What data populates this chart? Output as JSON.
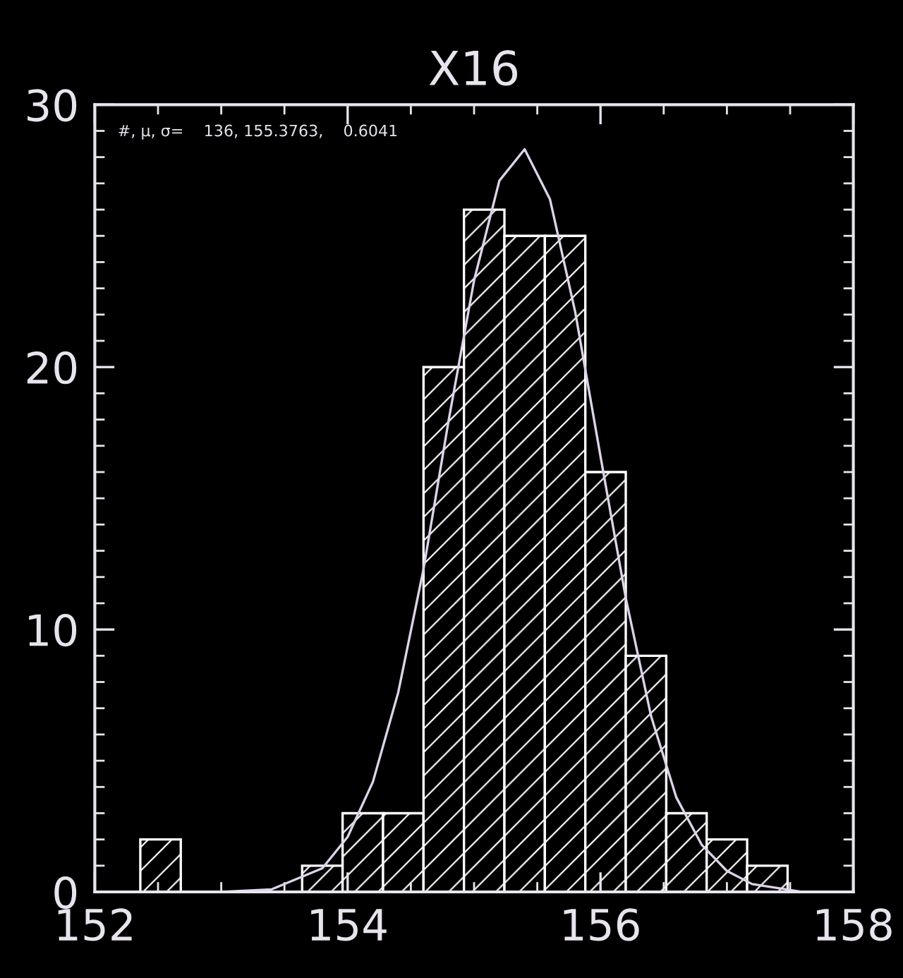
{
  "chart_data": {
    "type": "histogram",
    "title": "X16",
    "bins": [
      152.36,
      152.68,
      153.0,
      153.32,
      153.64,
      153.96,
      154.28,
      154.6,
      154.92,
      155.24,
      155.56,
      155.88,
      156.2,
      156.52,
      156.84,
      157.16,
      157.48
    ],
    "values": [
      2,
      0,
      0,
      0,
      1,
      3,
      3,
      20,
      26,
      25,
      25,
      16,
      9,
      3,
      2,
      1
    ],
    "color": "#ffffff",
    "series": [
      {
        "type": "line",
        "color": "#ddd4e8",
        "x": [
          153.0,
          153.4,
          153.8,
          154.0,
          154.2,
          154.4,
          154.6,
          154.8,
          155.0,
          155.2,
          155.4,
          155.6,
          155.8,
          156.0,
          156.2,
          156.4,
          156.6,
          156.8,
          157.0,
          157.2,
          157.6
        ],
        "values": [
          0.0,
          0.1,
          0.9,
          2.1,
          4.2,
          7.6,
          12.3,
          18.0,
          23.3,
          27.1,
          28.3,
          26.4,
          22.1,
          16.6,
          11.2,
          6.7,
          3.6,
          1.8,
          0.8,
          0.3,
          0.0
        ]
      }
    ],
    "annotations": [
      "#, μ, σ=    136, 155.3763,    0.6041"
    ],
    "xlim": [
      152,
      158
    ],
    "xticks": [
      152,
      154,
      156,
      158
    ],
    "ylim": [
      0,
      30
    ],
    "yticks": [
      0,
      10,
      20,
      30
    ],
    "grid": false
  }
}
